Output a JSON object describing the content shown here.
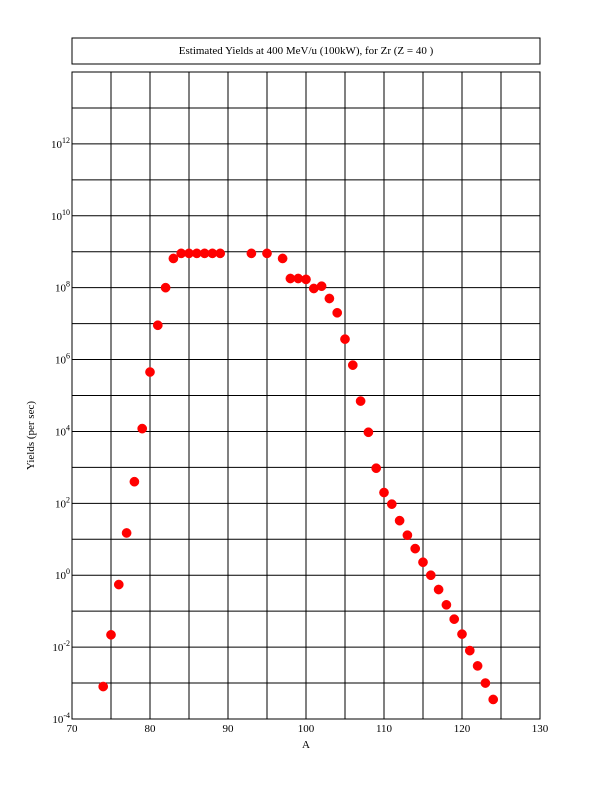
{
  "chart_data": {
    "type": "scatter",
    "title": "Estimated Yields at 400 MeV/u (100kW), for Zr (Z = 40 )",
    "xlabel": "A",
    "ylabel": "Yields (per sec)",
    "xlim": [
      70,
      130
    ],
    "ylim_log10": [
      -4,
      14
    ],
    "log_y": true,
    "grid": true,
    "x_ticks": [
      70,
      80,
      90,
      100,
      110,
      120,
      130
    ],
    "y_tick_exponents": [
      -4,
      -2,
      0,
      2,
      4,
      6,
      8,
      10,
      12
    ],
    "y_tick_base": "10",
    "marker_color": "#ff0000",
    "points": [
      {
        "x": 74,
        "y": 0.0008
      },
      {
        "x": 75,
        "y": 0.022
      },
      {
        "x": 76,
        "y": 0.55
      },
      {
        "x": 77,
        "y": 15
      },
      {
        "x": 78,
        "y": 400
      },
      {
        "x": 79,
        "y": 12000.0
      },
      {
        "x": 80,
        "y": 450000.0
      },
      {
        "x": 81,
        "y": 9000000.0
      },
      {
        "x": 82,
        "y": 100000000.0
      },
      {
        "x": 83,
        "y": 650000000.0
      },
      {
        "x": 84,
        "y": 900000000.0
      },
      {
        "x": 85,
        "y": 900000000.0
      },
      {
        "x": 86,
        "y": 900000000.0
      },
      {
        "x": 87,
        "y": 900000000.0
      },
      {
        "x": 88,
        "y": 900000000.0
      },
      {
        "x": 89,
        "y": 900000000.0
      },
      {
        "x": 93,
        "y": 900000000.0
      },
      {
        "x": 95,
        "y": 900000000.0
      },
      {
        "x": 97,
        "y": 650000000.0
      },
      {
        "x": 98,
        "y": 180000000.0
      },
      {
        "x": 99,
        "y": 180000000.0
      },
      {
        "x": 100,
        "y": 170000000.0
      },
      {
        "x": 101,
        "y": 95000000.0
      },
      {
        "x": 102,
        "y": 110000000.0
      },
      {
        "x": 103,
        "y": 50000000.0
      },
      {
        "x": 104,
        "y": 20000000.0
      },
      {
        "x": 105,
        "y": 3700000.0
      },
      {
        "x": 106,
        "y": 700000.0
      },
      {
        "x": 107,
        "y": 70000.0
      },
      {
        "x": 108,
        "y": 9500.0
      },
      {
        "x": 109,
        "y": 950
      },
      {
        "x": 110,
        "y": 200
      },
      {
        "x": 111,
        "y": 95
      },
      {
        "x": 112,
        "y": 33
      },
      {
        "x": 113,
        "y": 13
      },
      {
        "x": 114,
        "y": 5.5
      },
      {
        "x": 115,
        "y": 2.3
      },
      {
        "x": 116,
        "y": 1.0
      },
      {
        "x": 117,
        "y": 0.4
      },
      {
        "x": 118,
        "y": 0.15
      },
      {
        "x": 119,
        "y": 0.06
      },
      {
        "x": 120,
        "y": 0.023
      },
      {
        "x": 121,
        "y": 0.008
      },
      {
        "x": 122,
        "y": 0.003
      },
      {
        "x": 123,
        "y": 0.001
      },
      {
        "x": 124,
        "y": 0.00035
      }
    ]
  }
}
